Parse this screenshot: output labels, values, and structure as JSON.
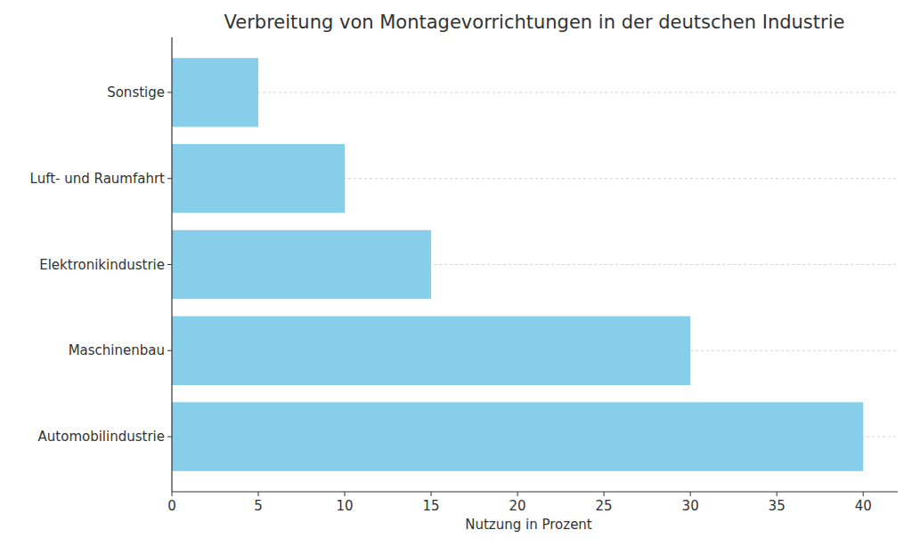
{
  "chart_data": {
    "type": "bar",
    "orientation": "horizontal",
    "title": "Verbreitung von Montagevorrichtungen in der deutschen Industrie",
    "x_label": "Nutzung in Prozent",
    "categories": [
      "Automobilindustrie",
      "Maschinenbau",
      "Elektronikindustrie",
      "Luft- und Raumfahrt",
      "Sonstige"
    ],
    "values": [
      40,
      30,
      15,
      10,
      5
    ],
    "color": "#87ceeb",
    "xlim": [
      0,
      42
    ],
    "xticks": [
      0,
      5,
      10,
      15,
      20,
      25,
      30,
      35,
      40
    ],
    "grid": true
  }
}
